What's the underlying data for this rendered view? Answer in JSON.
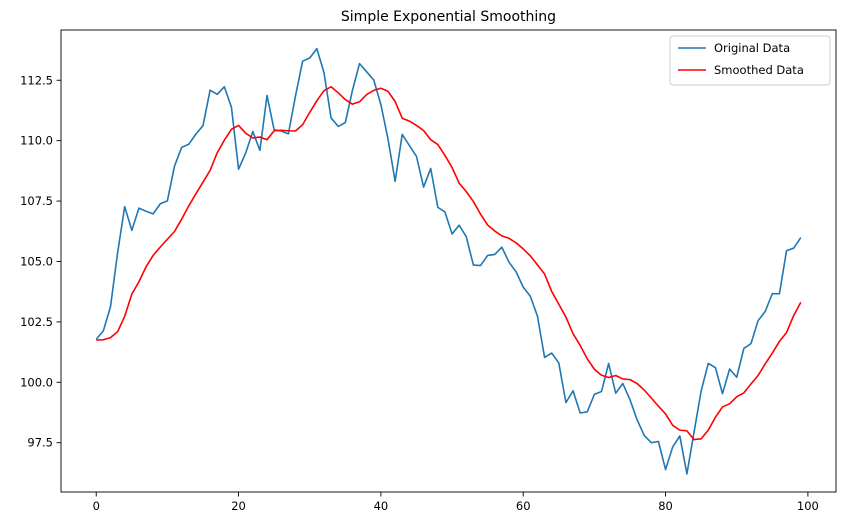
{
  "chart_data": {
    "type": "line",
    "title": "Simple Exponential Smoothing",
    "xlabel": "",
    "ylabel": "",
    "xlim": [
      -4.95,
      103.95
    ],
    "ylim": [
      95.46,
      114.58
    ],
    "x_ticks": [
      0,
      20,
      40,
      60,
      80,
      100
    ],
    "y_ticks": [
      97.5,
      100.0,
      102.5,
      105.0,
      107.5,
      110.0,
      112.5
    ],
    "y_tick_labels": [
      "97.5",
      "100.0",
      "102.5",
      "105.0",
      "107.5",
      "110.0",
      "112.5"
    ],
    "grid": false,
    "legend_position": "top-right",
    "series": [
      {
        "name": "Original Data",
        "color": "#1f77b4",
        "values": [
          101.78,
          102.13,
          103.12,
          105.35,
          107.27,
          106.29,
          107.21,
          107.08,
          106.97,
          107.39,
          107.51,
          108.95,
          109.72,
          109.85,
          110.27,
          110.62,
          112.09,
          111.92,
          112.23,
          111.38,
          108.82,
          109.49,
          110.38,
          109.6,
          111.87,
          110.45,
          110.4,
          110.28,
          111.85,
          113.29,
          113.42,
          113.81,
          112.82,
          110.94,
          110.59,
          110.75,
          112.08,
          113.19,
          112.85,
          112.51,
          111.49,
          110.07,
          108.32,
          110.26,
          109.8,
          109.35,
          108.08,
          108.85,
          107.24,
          107.05,
          106.14,
          106.5,
          106.02,
          104.85,
          104.83,
          105.25,
          105.29,
          105.59,
          104.97,
          104.57,
          103.94,
          103.56,
          102.74,
          101.03,
          101.21,
          100.8,
          99.16,
          99.65,
          98.73,
          98.78,
          99.5,
          99.62,
          100.78,
          99.55,
          99.95,
          99.28,
          98.45,
          97.8,
          97.5,
          97.55,
          96.39,
          97.32,
          97.78,
          96.21,
          97.93,
          99.64,
          100.78,
          100.61,
          99.53,
          100.55,
          100.21,
          101.4,
          101.6,
          102.55,
          102.93,
          103.67,
          103.66,
          105.45,
          105.55,
          105.99
        ]
      },
      {
        "name": "Smoothed Data",
        "color": "#ff0000",
        "values": [
          101.75,
          101.76,
          101.85,
          102.09,
          102.73,
          103.65,
          104.16,
          104.78,
          105.25,
          105.6,
          105.92,
          106.24,
          106.75,
          107.3,
          107.8,
          108.28,
          108.77,
          109.5,
          110.02,
          110.47,
          110.63,
          110.31,
          110.11,
          110.15,
          110.04,
          110.41,
          110.43,
          110.41,
          110.4,
          110.66,
          111.17,
          111.65,
          112.07,
          112.23,
          111.98,
          111.7,
          111.51,
          111.61,
          111.91,
          112.08,
          112.17,
          112.04,
          111.62,
          110.93,
          110.81,
          110.63,
          110.42,
          110.04,
          109.84,
          109.39,
          108.89,
          108.24,
          107.89,
          107.48,
          106.96,
          106.51,
          106.26,
          106.06,
          105.96,
          105.77,
          105.52,
          105.23,
          104.86,
          104.48,
          103.76,
          103.23,
          102.7,
          102.01,
          101.53,
          100.97,
          100.54,
          100.29,
          100.2,
          100.28,
          100.14,
          100.11,
          99.95,
          99.68,
          99.35,
          99.01,
          98.69,
          98.22,
          98.02,
          97.99,
          97.63,
          97.66,
          98.02,
          98.55,
          98.98,
          99.11,
          99.4,
          99.56,
          99.93,
          100.28,
          100.76,
          101.21,
          101.69,
          102.06,
          102.76,
          103.31
        ]
      }
    ]
  }
}
